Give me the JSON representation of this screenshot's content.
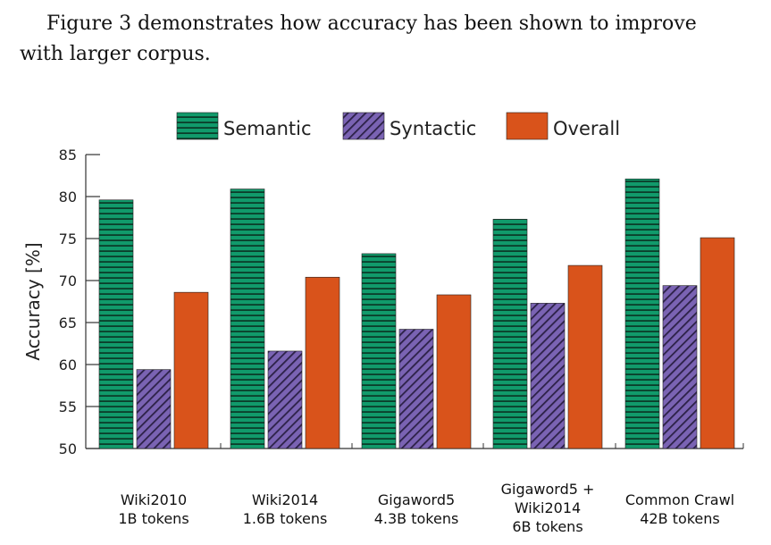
{
  "text": {
    "line1": "Figure 3 demonstrates how accuracy has been shown to improve",
    "line2": "with larger corpus."
  },
  "colors": {
    "semantic": "#119a6b",
    "syntactic": "#7a63b3",
    "overall": "#d9531b"
  },
  "chart_data": {
    "type": "bar",
    "title": "",
    "xlabel": "",
    "ylabel": "Accuracy [%]",
    "ylim": [
      50,
      85
    ],
    "yticks": [
      50,
      55,
      60,
      65,
      70,
      75,
      80,
      85
    ],
    "legend_position": "top",
    "categories": [
      [
        "Wiki2010",
        "1B tokens"
      ],
      [
        "Wiki2014",
        "1.6B tokens"
      ],
      [
        "Gigaword5",
        "4.3B tokens"
      ],
      [
        "Gigaword5 +",
        "Wiki2014",
        "6B tokens"
      ],
      [
        "Common Crawl",
        "42B tokens"
      ]
    ],
    "series": [
      {
        "name": "Semantic",
        "pattern": "horizontal-lines",
        "values": [
          79.6,
          80.9,
          73.2,
          77.3,
          82.1
        ]
      },
      {
        "name": "Syntactic",
        "pattern": "diagonal-hatch",
        "values": [
          59.4,
          61.6,
          64.2,
          67.3,
          69.4
        ]
      },
      {
        "name": "Overall",
        "pattern": "solid",
        "values": [
          68.6,
          70.4,
          68.3,
          71.8,
          75.1
        ]
      }
    ]
  }
}
